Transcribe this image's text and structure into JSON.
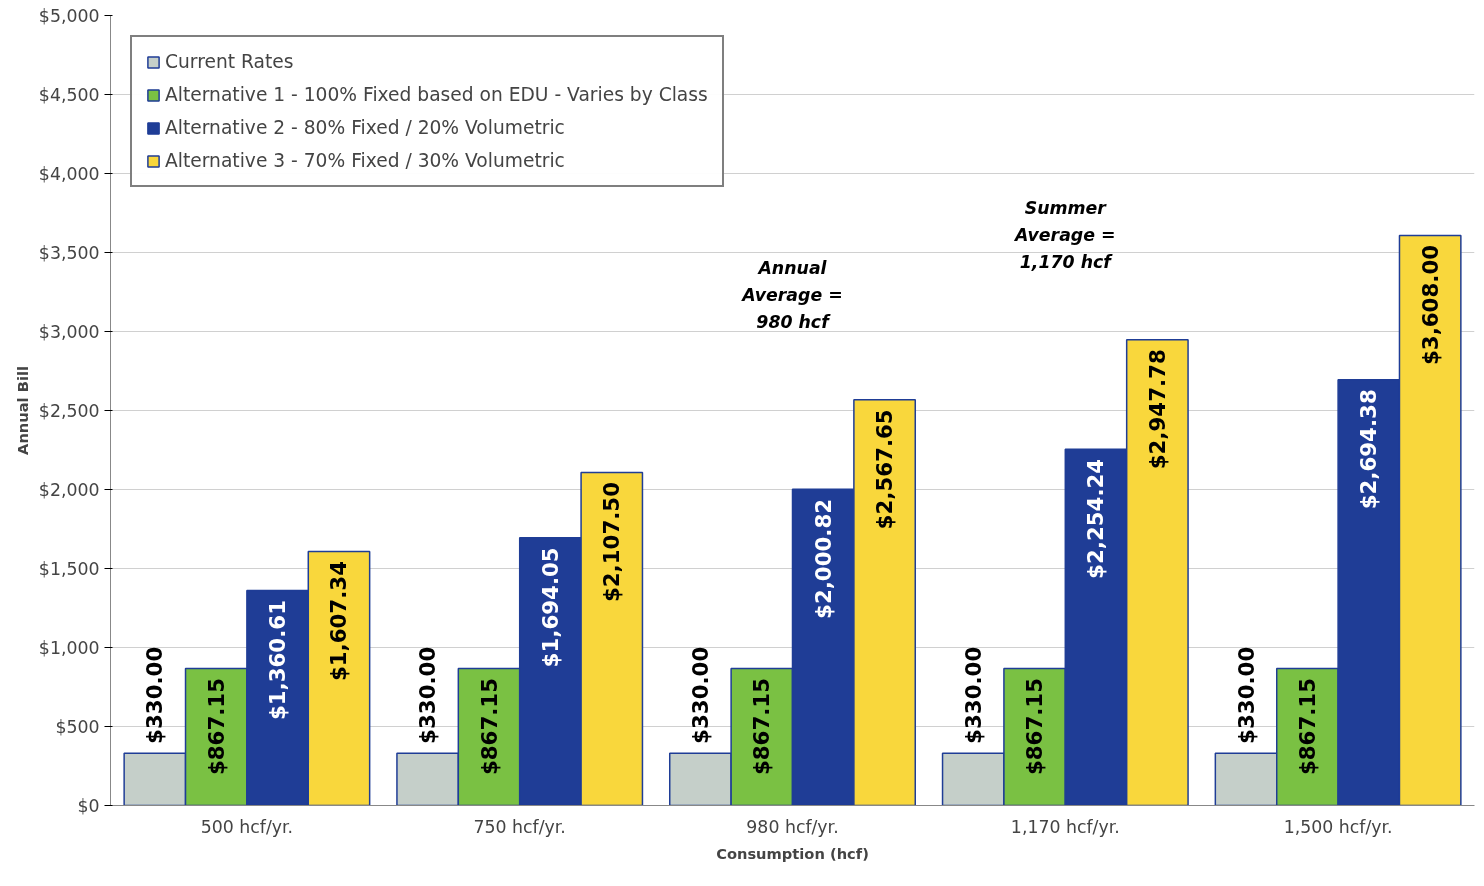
{
  "chart_data": {
    "type": "bar",
    "xlabel": "Consumption (hcf)",
    "ylabel": "Annual Bill",
    "categories": [
      "500 hcf/yr.",
      "750 hcf/yr.",
      "980 hcf/yr.",
      "1,170 hcf/yr.",
      "1,500 hcf/yr."
    ],
    "series": [
      {
        "name": "Current Rates",
        "color": "#c5cfc9",
        "values": [
          330,
          330,
          330,
          330,
          330
        ],
        "value_labels": [
          "$330.00",
          "$330.00",
          "$330.00",
          "$330.00",
          "$330.00"
        ]
      },
      {
        "name": "Alternative 1 - 100% Fixed based on EDU - Varies by Class",
        "color": "#7ac143",
        "values": [
          867.15,
          867.15,
          867.15,
          867.15,
          867.15
        ],
        "value_labels": [
          "$867.15",
          "$867.15",
          "$867.15",
          "$867.15",
          "$867.15"
        ]
      },
      {
        "name": "Alternative 2 - 80% Fixed / 20% Volumetric",
        "color": "#1f3d96",
        "values": [
          1360.61,
          1694.05,
          2000.82,
          2254.24,
          2694.38
        ],
        "value_labels": [
          "$1,360.61",
          "$1,694.05",
          "$2,000.82",
          "$2,254.24",
          "$2,694.38"
        ]
      },
      {
        "name": "Alternative 3 - 70% Fixed / 30% Volumetric",
        "color": "#f9d73c",
        "values": [
          1607.34,
          2107.5,
          2567.65,
          2947.78,
          3608.0
        ],
        "value_labels": [
          "$1,607.34",
          "$2,107.50",
          "$2,567.65",
          "$2,947.78",
          "$3,608.00"
        ]
      }
    ],
    "ylim": [
      0,
      5000
    ],
    "yticks": [
      {
        "value": 0,
        "label": "$0"
      },
      {
        "value": 500,
        "label": "$500"
      },
      {
        "value": 1000,
        "label": "$1,000"
      },
      {
        "value": 1500,
        "label": "$1,500"
      },
      {
        "value": 2000,
        "label": "$2,000"
      },
      {
        "value": 2500,
        "label": "$2,500"
      },
      {
        "value": 3000,
        "label": "$3,000"
      },
      {
        "value": 3500,
        "label": "$3,500"
      },
      {
        "value": 4000,
        "label": "$4,000"
      },
      {
        "value": 4500,
        "label": "$4,500"
      },
      {
        "value": 5000,
        "label": "$5,000"
      }
    ],
    "annotations": [
      "Annual\nAverage =\n980 hcf",
      "Summer\nAverage =\n1,170 hcf"
    ],
    "grid": "y",
    "legend": "top left"
  }
}
